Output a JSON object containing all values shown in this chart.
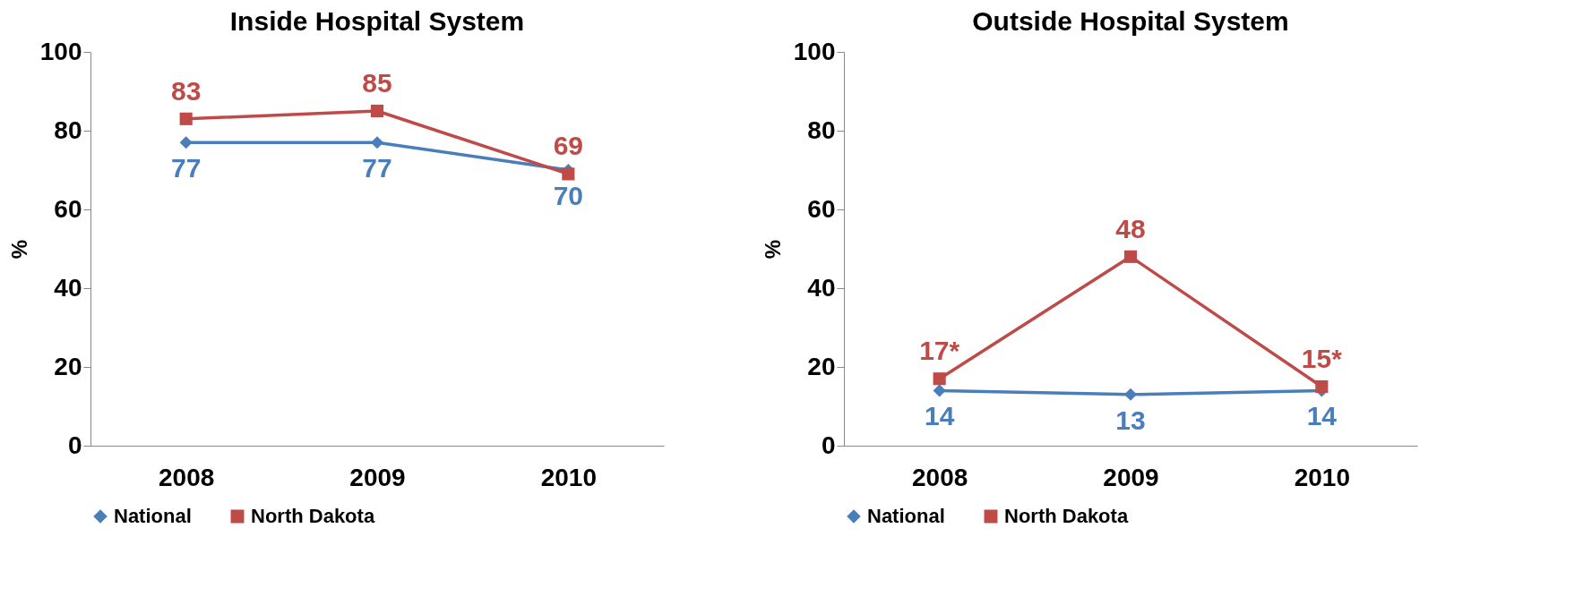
{
  "chart_data": [
    {
      "type": "line",
      "title": "Inside Hospital System",
      "ylabel": "%",
      "categories": [
        "2008",
        "2009",
        "2010"
      ],
      "ylim": [
        0,
        100
      ],
      "yticks": [
        0,
        20,
        40,
        60,
        80,
        100
      ],
      "grid": false,
      "legend": "bottom",
      "data_labels": true,
      "line_style": "solid",
      "series": [
        {
          "name": "National",
          "color": "#4a7ebb",
          "marker": "diamond",
          "values": [
            77,
            77,
            70
          ]
        },
        {
          "name": "North Dakota",
          "color": "#be4b48",
          "marker": "square",
          "values": [
            83,
            85,
            69
          ]
        }
      ]
    },
    {
      "type": "line",
      "title": "Outside Hospital System",
      "ylabel": "%",
      "categories": [
        "2008",
        "2009",
        "2010"
      ],
      "ylim": [
        0,
        100
      ],
      "yticks": [
        0,
        20,
        40,
        60,
        80,
        100
      ],
      "grid": false,
      "legend": "bottom",
      "line_style": "solid",
      "series": [
        {
          "name": "National",
          "color": "#4a7ebb",
          "marker": "diamond",
          "values": [
            14,
            13,
            14
          ],
          "value_labels": [
            "14",
            "13",
            "14"
          ]
        },
        {
          "name": "North Dakota",
          "color": "#be4b48",
          "marker": "square",
          "values": [
            17,
            48,
            15
          ],
          "value_labels": [
            "17*",
            "48",
            "15*"
          ]
        }
      ]
    }
  ]
}
